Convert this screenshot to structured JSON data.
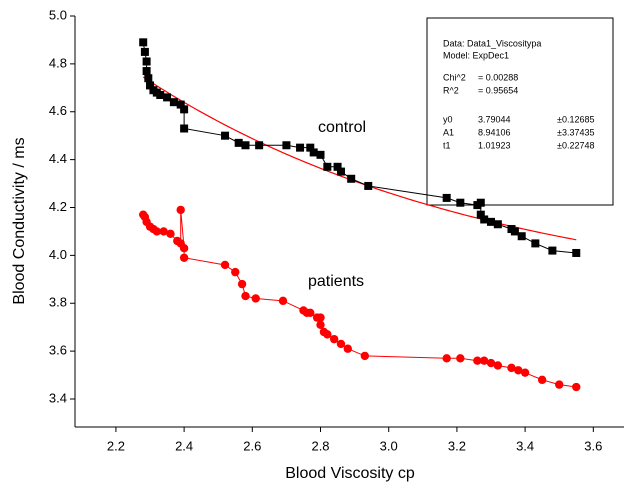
{
  "chart_data": {
    "type": "scatter",
    "x_label": "Blood Viscosity cp",
    "y_label": "Blood Conductivity / ms",
    "xlim": [
      2.08,
      3.69
    ],
    "ylim": [
      3.283,
      5.0
    ],
    "xticks": [
      2.2,
      2.4,
      2.6,
      2.8,
      {
        "value": 3,
        "label": "3.0"
      },
      3.2,
      3.4,
      3.6
    ],
    "yticks": [
      3.4,
      3.6,
      3.8,
      {
        "value": 4,
        "label": "4.0"
      },
      4.2,
      4.4,
      4.6,
      4.8,
      {
        "value": 5,
        "label": "5.0"
      }
    ],
    "series": [
      {
        "name": "control",
        "color": "#000000",
        "marker": "square",
        "x": [
          2.28,
          2.285,
          2.29,
          2.29,
          2.295,
          2.3,
          2.31,
          2.32,
          2.33,
          2.35,
          2.37,
          2.39,
          2.4,
          2.4,
          2.52,
          2.56,
          2.58,
          2.62,
          2.7,
          2.74,
          2.77,
          2.78,
          2.8,
          2.82,
          2.85,
          2.86,
          2.89,
          2.94,
          3.17,
          3.21,
          3.26,
          3.27,
          3.27,
          3.28,
          3.3,
          3.32,
          3.36,
          3.37,
          3.39,
          3.43,
          3.48,
          3.55
        ],
        "values": [
          4.89,
          4.85,
          4.81,
          4.77,
          4.74,
          4.71,
          4.69,
          4.68,
          4.67,
          4.66,
          4.64,
          4.63,
          4.61,
          4.53,
          4.5,
          4.47,
          4.46,
          4.46,
          4.46,
          4.45,
          4.45,
          4.43,
          4.42,
          4.37,
          4.37,
          4.35,
          4.32,
          4.29,
          4.24,
          4.22,
          4.21,
          4.22,
          4.17,
          4.15,
          4.14,
          4.13,
          4.11,
          4.1,
          4.08,
          4.05,
          4.02,
          4.01
        ]
      },
      {
        "name": "patients",
        "color": "#ff0000",
        "marker": "circle",
        "x": [
          2.28,
          2.285,
          2.29,
          2.3,
          2.31,
          2.32,
          2.34,
          2.36,
          2.38,
          2.39,
          2.39,
          2.4,
          2.4,
          2.52,
          2.55,
          2.57,
          2.58,
          2.61,
          2.69,
          2.75,
          2.76,
          2.77,
          2.79,
          2.8,
          2.8,
          2.81,
          2.82,
          2.84,
          2.86,
          2.88,
          2.93,
          3.17,
          3.21,
          3.26,
          3.28,
          3.3,
          3.32,
          3.36,
          3.38,
          3.4,
          3.45,
          3.5,
          3.55
        ],
        "values": [
          4.17,
          4.16,
          4.14,
          4.12,
          4.11,
          4.1,
          4.1,
          4.09,
          4.06,
          4.05,
          4.19,
          4.03,
          3.99,
          3.96,
          3.93,
          3.88,
          3.83,
          3.82,
          3.81,
          3.77,
          3.76,
          3.76,
          3.74,
          3.74,
          3.71,
          3.68,
          3.67,
          3.65,
          3.63,
          3.61,
          3.58,
          3.57,
          3.57,
          3.56,
          3.56,
          3.55,
          3.54,
          3.53,
          3.52,
          3.51,
          3.48,
          3.46,
          3.45
        ]
      }
    ],
    "fit": {
      "color": "#ff0000",
      "data": "Data: Data1_Viscositypa",
      "model": "Model: ExpDec1",
      "stats": [
        {
          "label": "Chi^2",
          "value": "= 0.00288"
        },
        {
          "label": "R^2",
          "value": "= 0.95654"
        }
      ],
      "params": [
        {
          "name": "y0",
          "value": 3.79044,
          "error": "±0.12685"
        },
        {
          "name": "A1",
          "value": 8.94106,
          "error": "±3.37435"
        },
        {
          "name": "t1",
          "value": 1.01923,
          "error": "±0.22748"
        }
      ]
    }
  }
}
